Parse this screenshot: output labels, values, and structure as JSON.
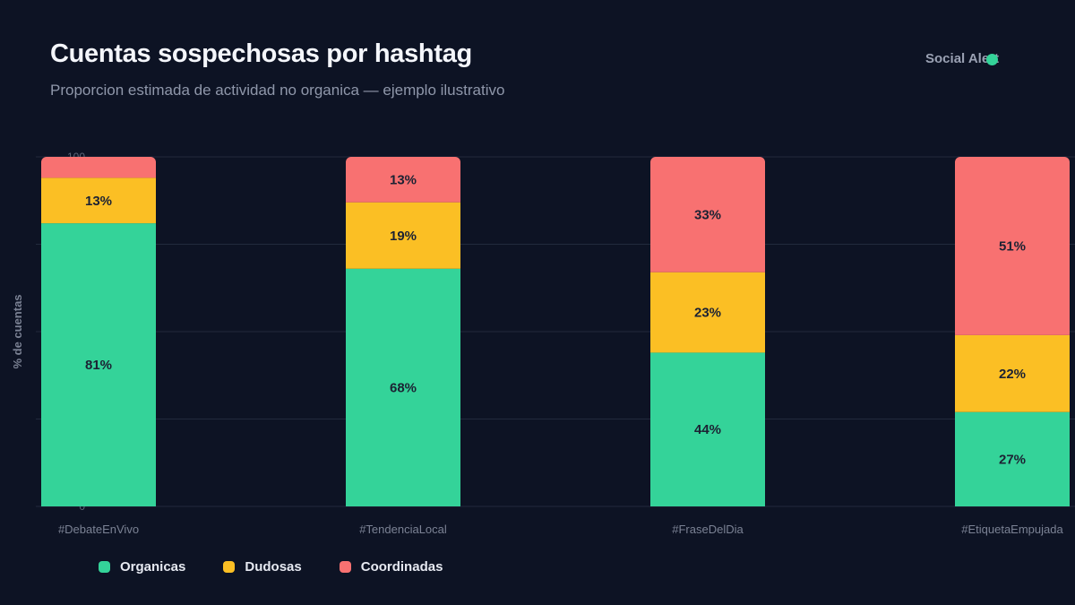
{
  "header": {
    "title": "Cuentas sospechosas por hashtag",
    "subtitle": "Proporcion estimada de actividad no organica — ejemplo ilustrativo",
    "brand": "Social Alert",
    "brand_color": "#34d399"
  },
  "chart_data": {
    "type": "bar",
    "stacked": true,
    "title": "Cuentas sospechosas por hashtag",
    "subtitle": "Proporcion estimada de actividad no organica — ejemplo ilustrativo",
    "xlabel": "",
    "ylabel": "% de cuentas",
    "ylim": [
      0,
      100
    ],
    "y_ticks": [
      "0",
      "100"
    ],
    "grid": true,
    "legend_position": "bottom-left",
    "categories": [
      "#DebateEnVivo",
      "#TendenciaLocal",
      "#FraseDelDia",
      "#EtiquetaEmpujada"
    ],
    "series": [
      {
        "name": "Organicas",
        "color": "#34d399",
        "values": [
          81,
          68,
          44,
          27
        ],
        "labels": [
          "81%",
          "68%",
          "44%",
          "27%"
        ]
      },
      {
        "name": "Dudosas",
        "color": "#fbbf24",
        "values": [
          13,
          19,
          23,
          22
        ],
        "labels": [
          "13%",
          "19%",
          "23%",
          "22%"
        ]
      },
      {
        "name": "Coordinadas",
        "color": "#f87171",
        "values": [
          6,
          13,
          33,
          51
        ],
        "labels": [
          "",
          "13%",
          "33%",
          "51%"
        ]
      }
    ]
  }
}
